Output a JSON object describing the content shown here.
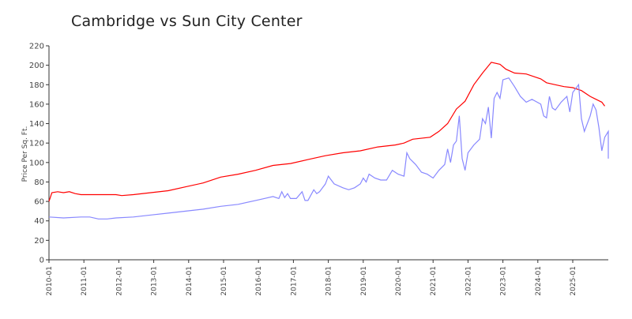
{
  "chart_data": {
    "type": "line",
    "title": "Cambridge vs Sun City Center",
    "xlabel": "",
    "ylabel": "Price Per Sq. Ft.",
    "ylim": [
      0,
      220
    ],
    "xlim": [
      "2010-01",
      "2025-12"
    ],
    "y_ticks": [
      0,
      20,
      40,
      60,
      80,
      100,
      120,
      140,
      160,
      180,
      200,
      220
    ],
    "x_ticks": [
      "2010-01",
      "2011-01",
      "2012-01",
      "2013-01",
      "2014-01",
      "2015-01",
      "2016-01",
      "2017-01",
      "2018-01",
      "2019-01",
      "2020-01",
      "2021-01",
      "2022-01",
      "2023-01",
      "2024-01",
      "2025-01"
    ],
    "x_tick_labels": [
      "2010-01",
      "2011-01",
      "2012-01",
      "2013-01",
      "2014-01",
      "2015-01",
      "2016-01",
      "2017-01",
      "2018-01",
      "2019-01",
      "2020-01",
      "2021-01",
      "2022-01",
      "2023-01",
      "2024-01",
      "2025-01"
    ],
    "grid": false,
    "series": [
      {
        "color": "#ff0000",
        "points": [
          [
            "2010-01",
            60
          ],
          [
            "2010-02",
            69
          ],
          [
            "2010-04",
            70
          ],
          [
            "2010-06",
            69
          ],
          [
            "2010-08",
            70
          ],
          [
            "2010-10",
            68
          ],
          [
            "2010-12",
            67
          ],
          [
            "2011-06",
            67
          ],
          [
            "2011-12",
            67
          ],
          [
            "2012-02",
            66
          ],
          [
            "2012-06",
            67
          ],
          [
            "2012-12",
            69
          ],
          [
            "2013-06",
            71
          ],
          [
            "2013-12",
            75
          ],
          [
            "2014-06",
            79
          ],
          [
            "2014-12",
            85
          ],
          [
            "2015-06",
            88
          ],
          [
            "2015-12",
            92
          ],
          [
            "2016-06",
            97
          ],
          [
            "2016-12",
            99
          ],
          [
            "2017-06",
            103
          ],
          [
            "2017-12",
            107
          ],
          [
            "2018-06",
            110
          ],
          [
            "2018-12",
            112
          ],
          [
            "2019-06",
            116
          ],
          [
            "2019-12",
            118
          ],
          [
            "2020-03",
            120
          ],
          [
            "2020-06",
            124
          ],
          [
            "2020-12",
            126
          ],
          [
            "2021-03",
            132
          ],
          [
            "2021-06",
            140
          ],
          [
            "2021-09",
            155
          ],
          [
            "2021-12",
            163
          ],
          [
            "2022-03",
            180
          ],
          [
            "2022-06",
            192
          ],
          [
            "2022-09",
            203
          ],
          [
            "2022-12",
            201
          ],
          [
            "2023-02",
            196
          ],
          [
            "2023-05",
            192
          ],
          [
            "2023-09",
            191
          ],
          [
            "2023-12",
            188
          ],
          [
            "2024-02",
            186
          ],
          [
            "2024-04",
            182
          ],
          [
            "2024-07",
            180
          ],
          [
            "2024-10",
            178
          ],
          [
            "2025-01",
            177
          ],
          [
            "2025-04",
            174
          ],
          [
            "2025-07",
            168
          ],
          [
            "2025-09",
            165
          ],
          [
            "2025-11",
            162
          ],
          [
            "2025-12",
            158
          ]
        ]
      },
      {
        "color": "#8888ff",
        "points": [
          [
            "2010-01",
            44
          ],
          [
            "2010-06",
            43
          ],
          [
            "2010-12",
            44
          ],
          [
            "2011-03",
            44
          ],
          [
            "2011-06",
            42
          ],
          [
            "2011-09",
            42
          ],
          [
            "2011-12",
            43
          ],
          [
            "2012-06",
            44
          ],
          [
            "2012-12",
            46
          ],
          [
            "2013-06",
            48
          ],
          [
            "2013-12",
            50
          ],
          [
            "2014-06",
            52
          ],
          [
            "2014-12",
            55
          ],
          [
            "2015-06",
            57
          ],
          [
            "2015-12",
            61
          ],
          [
            "2016-03",
            63
          ],
          [
            "2016-06",
            65
          ],
          [
            "2016-08",
            63
          ],
          [
            "2016-09",
            70
          ],
          [
            "2016-10",
            64
          ],
          [
            "2016-11",
            68
          ],
          [
            "2016-12",
            63
          ],
          [
            "2017-02",
            63
          ],
          [
            "2017-04",
            70
          ],
          [
            "2017-05",
            61
          ],
          [
            "2017-06",
            61
          ],
          [
            "2017-08",
            72
          ],
          [
            "2017-09",
            68
          ],
          [
            "2017-10",
            70
          ],
          [
            "2017-12",
            78
          ],
          [
            "2018-01",
            86
          ],
          [
            "2018-03",
            78
          ],
          [
            "2018-06",
            74
          ],
          [
            "2018-08",
            72
          ],
          [
            "2018-10",
            74
          ],
          [
            "2018-12",
            78
          ],
          [
            "2019-01",
            84
          ],
          [
            "2019-02",
            80
          ],
          [
            "2019-03",
            88
          ],
          [
            "2019-05",
            84
          ],
          [
            "2019-07",
            82
          ],
          [
            "2019-09",
            82
          ],
          [
            "2019-11",
            92
          ],
          [
            "2020-01",
            88
          ],
          [
            "2020-03",
            86
          ],
          [
            "2020-04",
            110
          ],
          [
            "2020-05",
            104
          ],
          [
            "2020-07",
            98
          ],
          [
            "2020-09",
            90
          ],
          [
            "2020-11",
            88
          ],
          [
            "2021-01",
            84
          ],
          [
            "2021-03",
            92
          ],
          [
            "2021-05",
            98
          ],
          [
            "2021-06",
            114
          ],
          [
            "2021-07",
            100
          ],
          [
            "2021-08",
            118
          ],
          [
            "2021-09",
            122
          ],
          [
            "2021-10",
            148
          ],
          [
            "2021-11",
            104
          ],
          [
            "2021-12",
            92
          ],
          [
            "2022-01",
            110
          ],
          [
            "2022-03",
            118
          ],
          [
            "2022-05",
            124
          ],
          [
            "2022-06",
            145
          ],
          [
            "2022-07",
            140
          ],
          [
            "2022-08",
            157
          ],
          [
            "2022-09",
            125
          ],
          [
            "2022-10",
            166
          ],
          [
            "2022-11",
            172
          ],
          [
            "2022-12",
            166
          ],
          [
            "2023-01",
            185
          ],
          [
            "2023-03",
            187
          ],
          [
            "2023-05",
            178
          ],
          [
            "2023-07",
            168
          ],
          [
            "2023-09",
            162
          ],
          [
            "2023-11",
            165
          ],
          [
            "2024-02",
            160
          ],
          [
            "2024-03",
            148
          ],
          [
            "2024-04",
            146
          ],
          [
            "2024-05",
            168
          ],
          [
            "2024-06",
            156
          ],
          [
            "2024-07",
            154
          ],
          [
            "2024-09",
            162
          ],
          [
            "2024-11",
            168
          ],
          [
            "2024-12",
            152
          ],
          [
            "2025-01",
            172
          ],
          [
            "2025-03",
            180
          ],
          [
            "2025-04",
            145
          ],
          [
            "2025-05",
            132
          ],
          [
            "2025-07",
            148
          ],
          [
            "2025-08",
            160
          ],
          [
            "2025-09",
            154
          ],
          [
            "2025-10",
            136
          ],
          [
            "2025-11",
            112
          ],
          [
            "2025-12",
            126
          ],
          [
            "2026-02",
            132
          ],
          [
            "2026-03",
            126
          ],
          [
            "2026-05",
            104
          ]
        ]
      }
    ]
  }
}
